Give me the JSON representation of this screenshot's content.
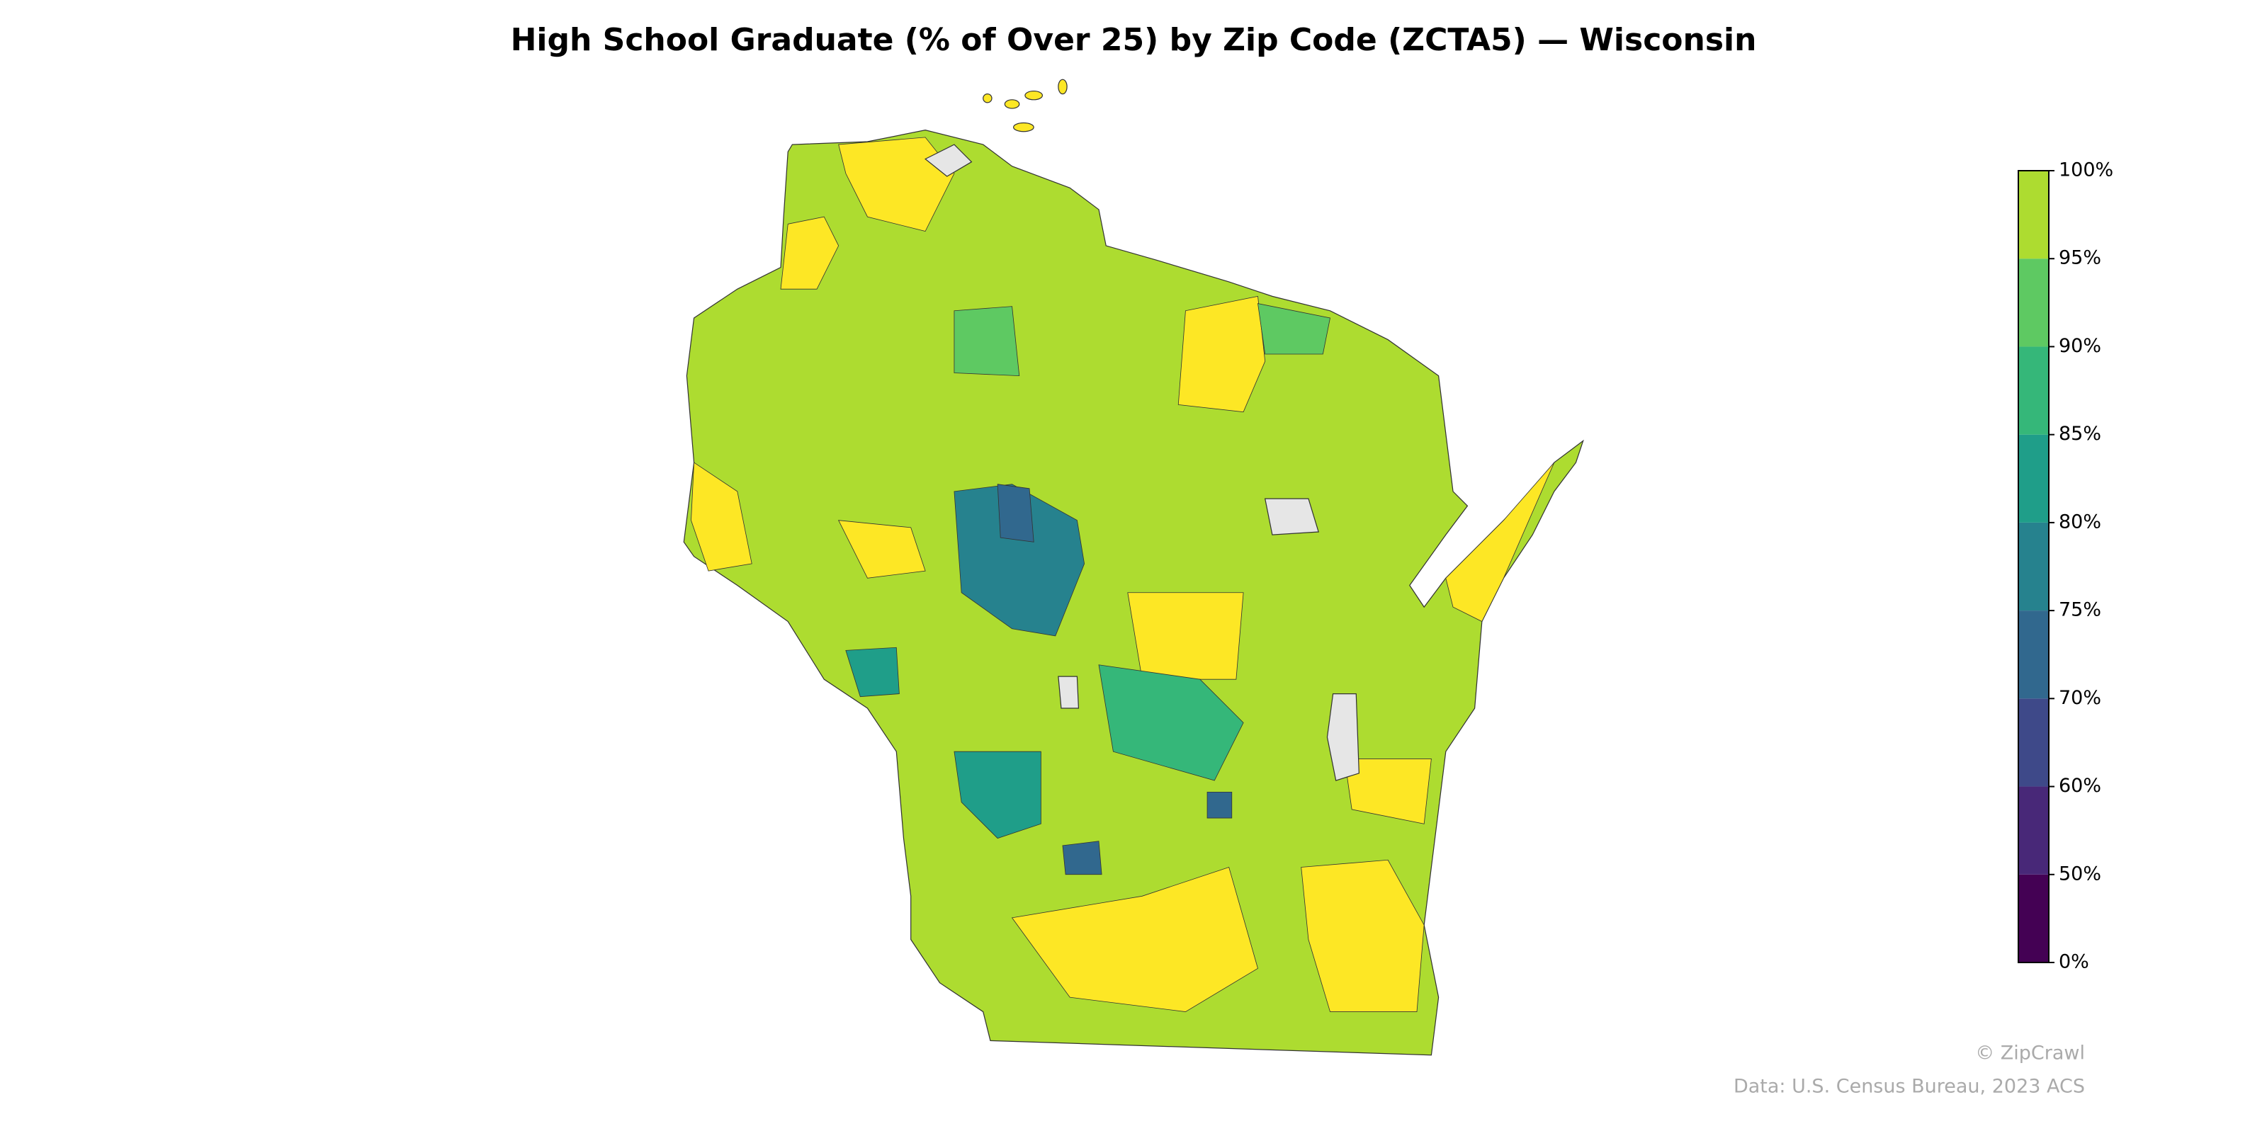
{
  "chart_data": {
    "type": "choropleth",
    "title": "High School Graduate (% of Over 25) by Zip Code (ZCTA5) — Wisconsin",
    "colorbar": {
      "ticks": [
        {
          "value": 0,
          "label": "0%"
        },
        {
          "value": 50,
          "label": "50%"
        },
        {
          "value": 60,
          "label": "60%"
        },
        {
          "value": 70,
          "label": "70%"
        },
        {
          "value": 75,
          "label": "75%"
        },
        {
          "value": 80,
          "label": "80%"
        },
        {
          "value": 85,
          "label": "85%"
        },
        {
          "value": 90,
          "label": "90%"
        },
        {
          "value": 95,
          "label": "95%"
        },
        {
          "value": 100,
          "label": "100%"
        }
      ],
      "colors": [
        "#440154",
        "#482878",
        "#3e4989",
        "#31688e",
        "#26828e",
        "#1f9e89",
        "#35b779",
        "#5ec962",
        "#addc30",
        "#fde725"
      ]
    },
    "credit": "© ZipCrawl",
    "source": "Data: U.S. Census Bureau, 2023 ACS"
  }
}
